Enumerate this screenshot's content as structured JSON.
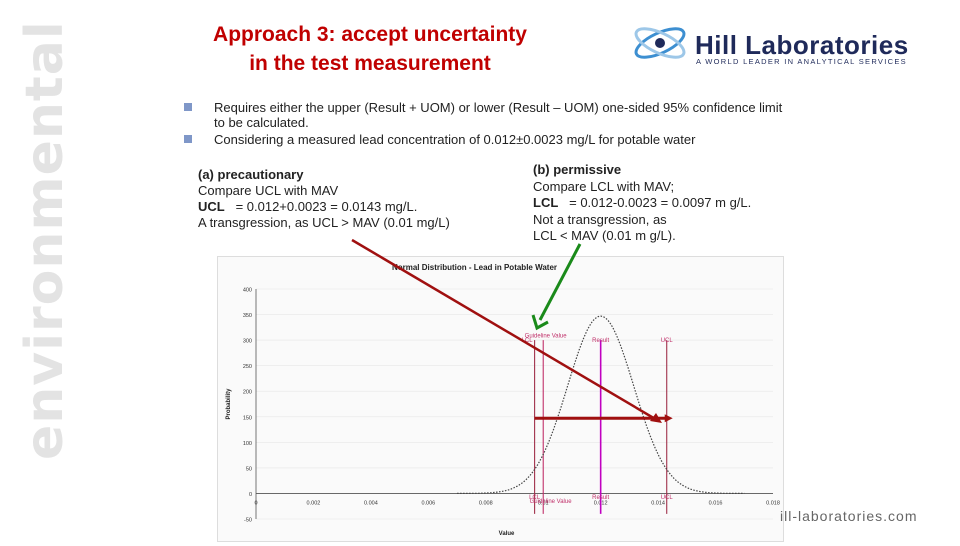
{
  "title": {
    "line1": "Approach 3: accept uncertainty",
    "line2": "in the test measurement"
  },
  "logo": {
    "name": "Hill Laboratories",
    "tagline": "A WORLD LEADER IN ANALYTICAL SERVICES"
  },
  "side_label": "environmental",
  "bullets": [
    "Requires either the upper (Result + UOM) or lower (Result – UOM) one-sided 95% confidence limit to be calculated.",
    "Considering a measured lead concentration of 0.012±0.0023 mg/L for potable water"
  ],
  "case_a": {
    "heading": "(a) precautionary",
    "line1": "Compare UCL with MAV",
    "label": "UCL",
    "eq": "= 0.012+0.0023 = 0.0143 mg/L.",
    "line3": "A transgression, as UCL > MAV (0.01 mg/L)"
  },
  "case_b": {
    "heading": "(b) permissive",
    "line1": "Compare LCL with MAV;",
    "label": "LCL",
    "eq": "= 0.012-0.0023 = 0.0097 m g/L.",
    "line3": "Not a transgression, as",
    "line4": "LCL < MAV (0.01 m g/L)."
  },
  "chart_data": {
    "type": "line",
    "title": "Normal Distribution - Lead in Potable Water",
    "xlabel": "Value",
    "ylabel": "Probability",
    "xlim": [
      0,
      0.018
    ],
    "ylim": [
      -50,
      400
    ],
    "x_ticks": [
      "0",
      "0.002",
      "0.004",
      "0.006",
      "0.008",
      "0.01",
      "0.012",
      "0.014",
      "0.016",
      "0.018"
    ],
    "y_ticks": [
      "-50",
      "0",
      "50",
      "100",
      "150",
      "200",
      "250",
      "300",
      "350",
      "400"
    ],
    "series": [
      {
        "mean": 0.012,
        "sd": 0.00115,
        "peak": 347
      }
    ],
    "vlines": [
      {
        "x": 0.0097,
        "top": "Guideline Value",
        "bottom": "LCL"
      },
      {
        "x": 0.01,
        "top": "Guideline Value",
        "bottom": "Guideline Value"
      },
      {
        "x": 0.012,
        "top": "Result",
        "bottom": "Result"
      },
      {
        "x": 0.0143,
        "top": "UCL",
        "bottom": "UCL"
      }
    ],
    "top_labels": [
      "Guideline Value",
      "LCL",
      "Result",
      "UCL"
    ],
    "bottom_labels": [
      "LCL",
      "Result",
      "UCL",
      "Guideline Value"
    ],
    "colors": {
      "curve": "#444444",
      "lcl": "#a0304a",
      "result": "#c000c0",
      "ucl": "#a0304a",
      "gv": "#c0306a",
      "arrow_red": "#a01010",
      "arrow_green": "#1a8a1a"
    }
  },
  "website": "ill-laboratories.com"
}
